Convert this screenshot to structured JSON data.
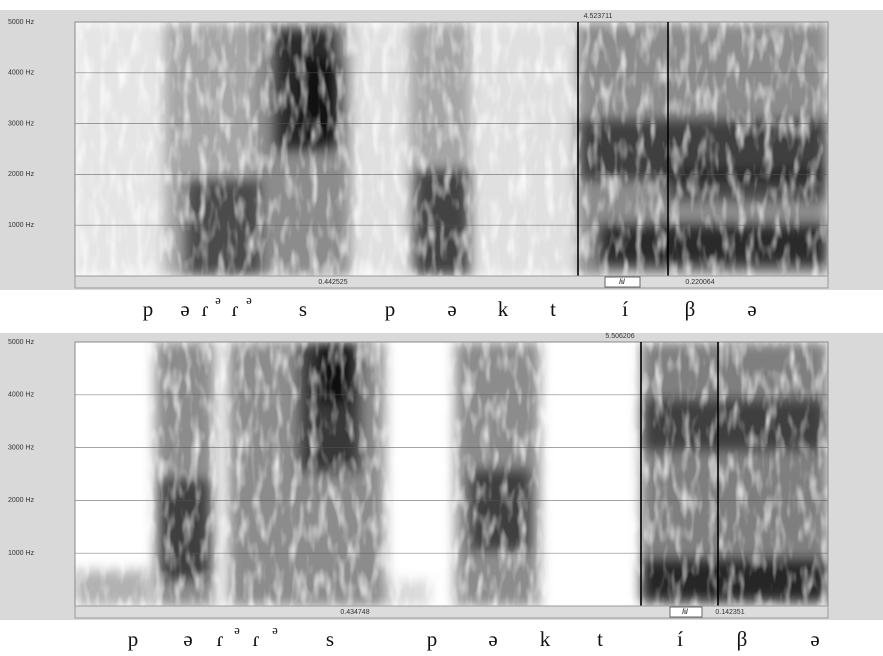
{
  "panels": [
    {
      "yticks": [
        "5000 Hz",
        "4000 Hz",
        "3000 Hz",
        "2000 Hz",
        "1000 Hz"
      ],
      "cursor_time": "4.523711",
      "segments": [
        "0.442525",
        "/i/",
        "0.220064"
      ],
      "transcription": [
        "p",
        "ə",
        "ɾ",
        "ᵊ",
        "ɾ",
        "ᵊ",
        "s",
        "p",
        "ə",
        "k",
        "t",
        "í",
        "β",
        "ə"
      ]
    },
    {
      "yticks": [
        "5000 Hz",
        "4000 Hz",
        "3000 Hz",
        "2000 Hz",
        "1000 Hz"
      ],
      "cursor_time": "5.506206",
      "segments": [
        "0.434748",
        "/i/",
        "0.142351"
      ],
      "transcription": [
        "p",
        "ə",
        "ɾ",
        "ᵊ",
        "ɾ",
        "ᵊ",
        "s",
        "p",
        "ə",
        "k",
        "t",
        "í",
        "β",
        "ə"
      ]
    }
  ]
}
